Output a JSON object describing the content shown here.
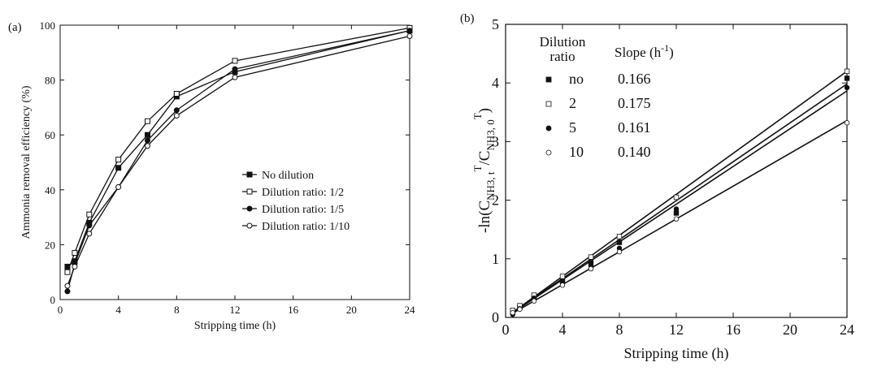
{
  "chart_data": [
    {
      "panel_label": "(a)",
      "type": "line",
      "xlabel": "Stripping time (h)",
      "ylabel": "Ammonia removal efficiency (%)",
      "xlim": [
        0,
        24
      ],
      "ylim": [
        0,
        100
      ],
      "xticks": [
        0,
        4,
        8,
        12,
        16,
        20,
        24
      ],
      "yticks": [
        0,
        20,
        40,
        60,
        80,
        100
      ],
      "grid": false,
      "legend_position": "center-right",
      "x": [
        0.5,
        1,
        2,
        4,
        6,
        8,
        12,
        24
      ],
      "series": [
        {
          "name": "No dilution",
          "marker": "filled-square",
          "values": [
            12,
            14,
            28,
            48,
            60,
            74,
            83,
            98
          ]
        },
        {
          "name": "Dilution ratio: 1/2",
          "marker": "open-square",
          "values": [
            10,
            17,
            31,
            51,
            65,
            75,
            87,
            99
          ]
        },
        {
          "name": "Dilution ratio: 1/5",
          "marker": "filled-circle",
          "values": [
            3,
            13,
            27,
            41,
            58,
            69,
            84,
            98
          ]
        },
        {
          "name": "Dilution ratio: 1/10",
          "marker": "open-circle",
          "values": [
            5,
            12,
            24,
            41,
            56,
            67,
            81,
            96
          ]
        }
      ]
    },
    {
      "panel_label": "(b)",
      "type": "scatter",
      "xlabel": "Stripping time (h)",
      "ylabel_main": "-ln(C",
      "ylabel_sub1": "NH3, t",
      "ylabel_sup1": "T",
      "ylabel_mid": "/C",
      "ylabel_sub2": "NH3, 0",
      "ylabel_sup2": "T",
      "ylabel_end": ")",
      "xlim": [
        0,
        24
      ],
      "ylim": [
        0,
        5
      ],
      "xticks": [
        0,
        4,
        8,
        12,
        16,
        20,
        24
      ],
      "yticks": [
        0,
        1,
        2,
        3,
        4,
        5
      ],
      "grid": false,
      "legend_position": "top-left",
      "legend_header_ratio": "Dilution",
      "legend_header_ratio2": "ratio",
      "legend_header_slope": "Slope (h",
      "legend_header_slope_sup": "-1",
      "legend_header_slope_end": ")",
      "x": [
        0.5,
        1,
        2,
        4,
        6,
        8,
        12,
        24
      ],
      "series": [
        {
          "name": "no",
          "slope": "0.166",
          "slope_value": 0.166,
          "marker": "filled-square",
          "values": [
            0.1,
            0.17,
            0.35,
            0.63,
            0.93,
            1.28,
            1.78,
            4.08
          ]
        },
        {
          "name": "2",
          "slope": "0.175",
          "slope_value": 0.175,
          "marker": "open-square",
          "values": [
            0.12,
            0.2,
            0.38,
            0.7,
            1.03,
            1.38,
            2.05,
            4.2
          ]
        },
        {
          "name": "5",
          "slope": "0.161",
          "slope_value": 0.161,
          "marker": "filled-circle",
          "values": [
            0.05,
            0.15,
            0.33,
            0.58,
            0.88,
            1.18,
            1.85,
            3.92
          ]
        },
        {
          "name": "10",
          "slope": "0.140",
          "slope_value": 0.14,
          "marker": "open-circle",
          "values": [
            0.08,
            0.14,
            0.28,
            0.55,
            0.83,
            1.12,
            1.68,
            3.32
          ]
        }
      ]
    }
  ]
}
